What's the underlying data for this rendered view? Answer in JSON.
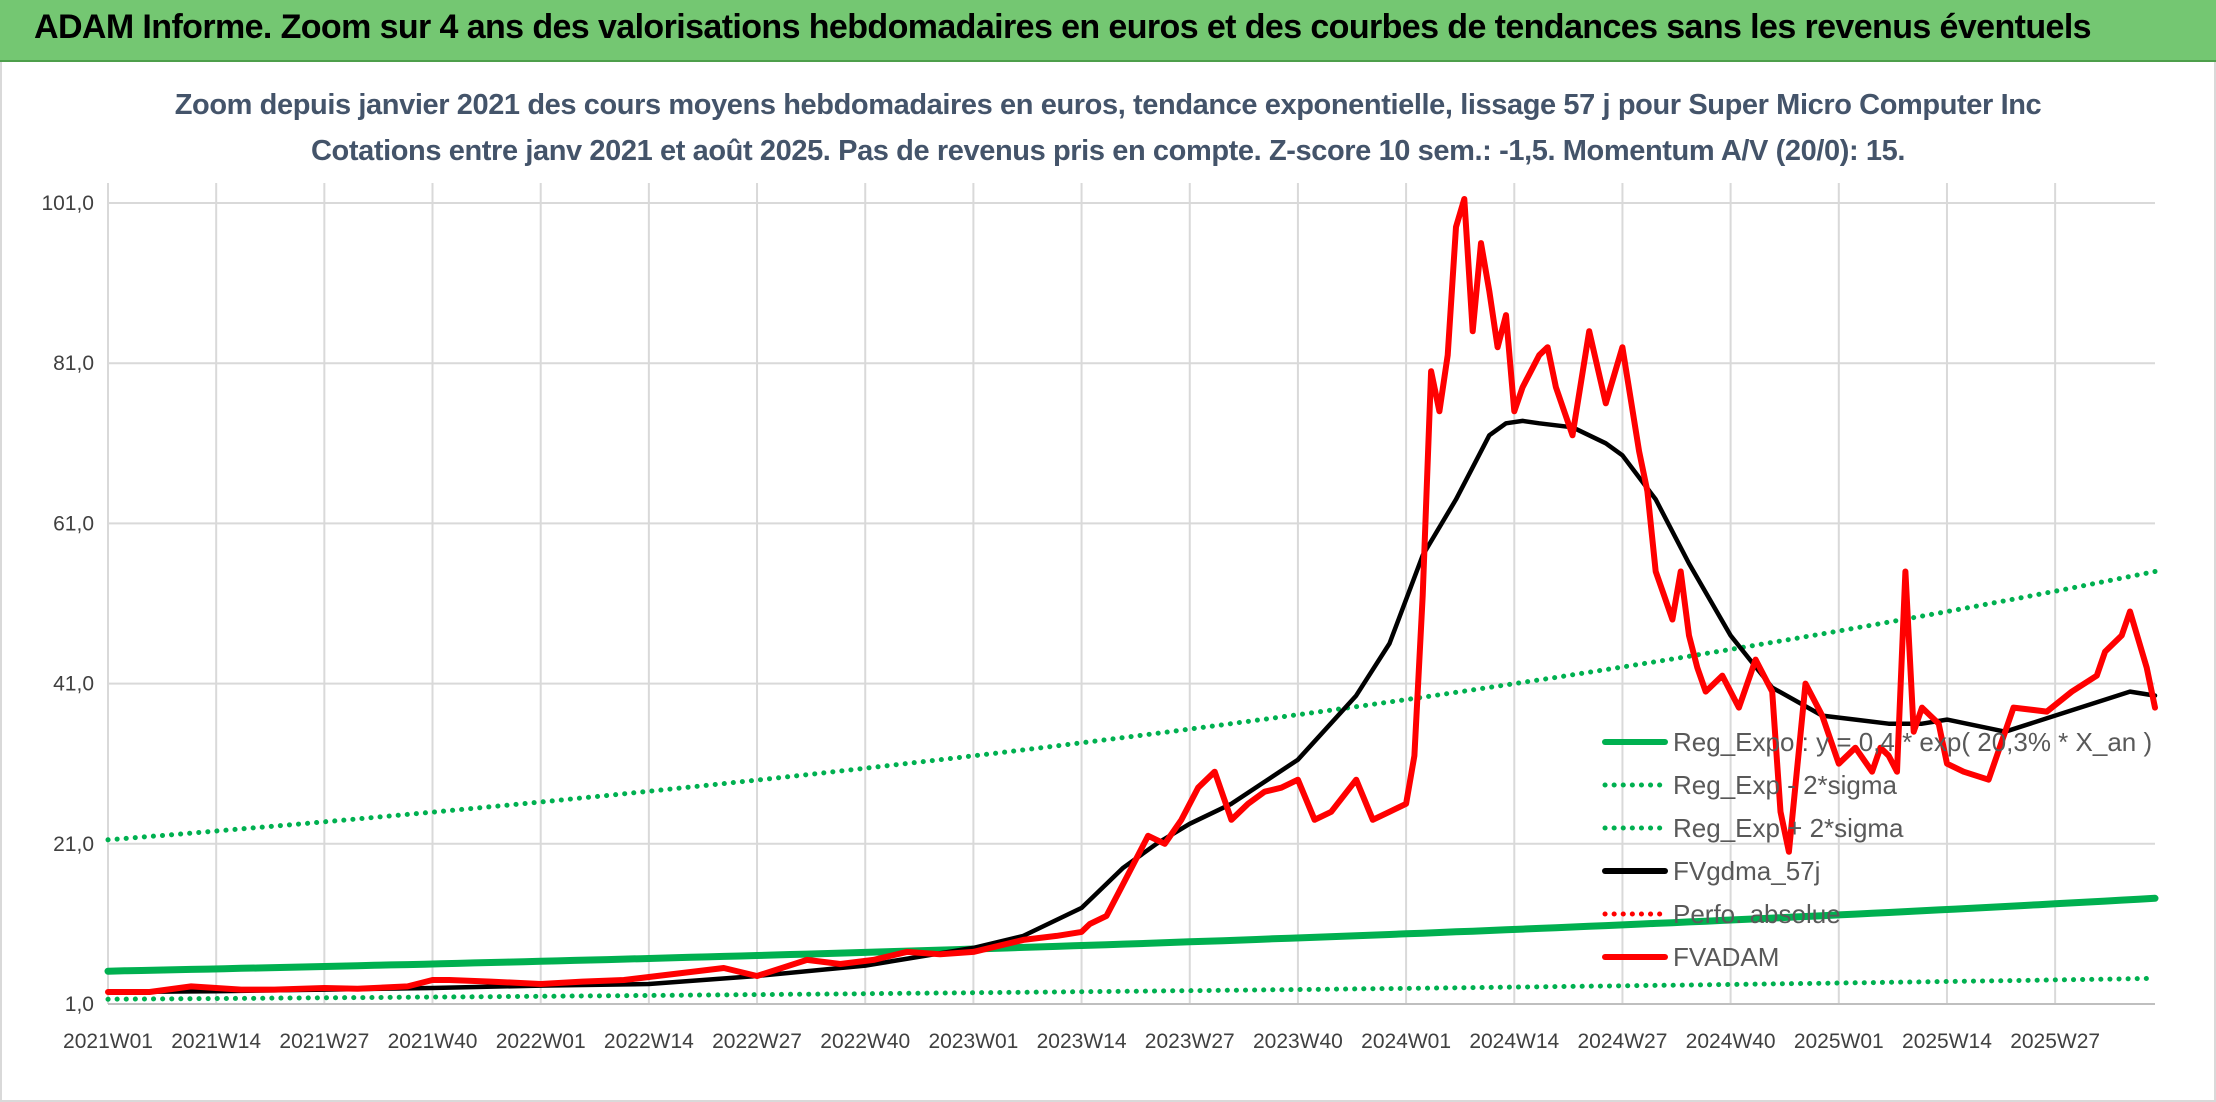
{
  "header": {
    "title": "ADAM Informe. Zoom sur 4 ans des valorisations hebdomadaires en euros et des courbes de tendances sans les revenus éventuels"
  },
  "chart_data": {
    "type": "line",
    "title": "Zoom depuis janvier 2021 des cours moyens hebdomadaires en euros, tendance exponentielle, lissage 57 j pour Super Micro Computer Inc",
    "subtitle": "Cotations entre janv 2021 et août 2025. Pas de revenus pris en compte. Z-score 10 sem.: -1,5. Momentum A/V (20/0): 15.",
    "xlabel": "",
    "ylabel": "",
    "ylim": [
      1,
      101
    ],
    "yticks": [
      "1,0",
      "21,0",
      "41,0",
      "61,0",
      "81,0",
      "101,0"
    ],
    "xticks": [
      "2021W01",
      "2021W14",
      "2021W27",
      "2021W40",
      "2022W01",
      "2022W14",
      "2022W27",
      "2022W40",
      "2023W01",
      "2023W14",
      "2023W27",
      "2023W40",
      "2024W01",
      "2024W14",
      "2024W27",
      "2024W40",
      "2025W01",
      "2025W14",
      "2025W27"
    ],
    "x_week_index": [
      0,
      13,
      26,
      39,
      52,
      65,
      78,
      91,
      104,
      117,
      130,
      143,
      156,
      169,
      182,
      195,
      208,
      221,
      234
    ],
    "grid": true,
    "legend_position": "bottom-right",
    "series": [
      {
        "name": "Reg_Expo : y = 0,4 * exp( 20,3% * X_an )",
        "color": "#00b050",
        "style": "solid",
        "x": [
          0,
          246
        ],
        "values": [
          5.1,
          14.2
        ],
        "shape": "exponential"
      },
      {
        "name": "Reg_Exp - 2*sigma",
        "color": "#00b050",
        "style": "dotted",
        "x": [
          0,
          246
        ],
        "values": [
          1.6,
          4.2
        ],
        "shape": "exponential"
      },
      {
        "name": "Reg_Exp + 2*sigma",
        "color": "#00b050",
        "style": "dotted",
        "x": [
          0,
          246
        ],
        "values": [
          21.5,
          55.0
        ],
        "shape": "exponential"
      },
      {
        "name": "FVgdma_57j",
        "color": "#000000",
        "style": "solid",
        "x": [
          0,
          13,
          26,
          39,
          52,
          65,
          78,
          91,
          104,
          110,
          117,
          122,
          126,
          130,
          135,
          143,
          150,
          154,
          158,
          162,
          164,
          166,
          168,
          170,
          172,
          176,
          180,
          182,
          186,
          190,
          195,
          200,
          206,
          210,
          214,
          218,
          221,
          228,
          234,
          240,
          243,
          246
        ],
        "values": [
          2.5,
          2.6,
          2.8,
          3.0,
          3.3,
          3.5,
          4.5,
          5.8,
          8.0,
          9.5,
          13.0,
          18.0,
          21.0,
          23.5,
          26.0,
          31.5,
          39.5,
          46.0,
          57.0,
          64.0,
          68.0,
          72.0,
          73.5,
          73.8,
          73.5,
          73.0,
          71.0,
          69.5,
          64.0,
          56.0,
          47.0,
          40.5,
          37.0,
          36.5,
          36.0,
          36.0,
          36.5,
          35.0,
          37.0,
          39.0,
          40.0,
          39.5
        ]
      },
      {
        "name": "Perfo. absolue",
        "color": "#ff0000",
        "style": "dotted",
        "x": [],
        "values": []
      },
      {
        "name": "FVADAM",
        "color": "#ff0000",
        "style": "solid",
        "x": [
          0,
          5,
          10,
          16,
          20,
          26,
          30,
          36,
          39,
          41,
          46,
          52,
          57,
          62,
          66,
          70,
          74,
          78,
          84,
          88,
          92,
          96,
          100,
          104,
          106,
          110,
          114,
          117,
          118,
          120,
          122,
          125,
          127,
          129,
          131,
          133,
          135,
          137,
          139,
          141,
          143,
          145,
          147,
          150,
          152,
          154,
          156,
          157,
          158,
          159,
          160,
          161,
          162,
          163,
          164,
          165,
          166,
          167,
          168,
          169,
          170,
          171,
          172,
          173,
          174,
          176,
          178,
          180,
          182,
          184,
          185,
          186,
          187,
          188,
          189,
          190,
          191,
          192,
          194,
          196,
          198,
          200,
          201,
          202,
          204,
          206,
          208,
          209,
          210,
          212,
          213,
          214,
          215,
          216,
          217,
          218,
          219,
          220,
          221,
          223,
          226,
          227,
          229,
          233,
          236,
          239,
          240,
          242,
          243,
          245,
          246
        ],
        "values": [
          2.5,
          2.5,
          3.2,
          2.8,
          2.8,
          3.0,
          2.9,
          3.2,
          4.0,
          4.0,
          3.8,
          3.5,
          3.8,
          4.0,
          4.5,
          5.0,
          5.5,
          4.5,
          6.5,
          6.0,
          6.5,
          7.5,
          7.2,
          7.5,
          8.0,
          9.0,
          9.5,
          10.0,
          11.0,
          12.0,
          16.0,
          22.0,
          21.0,
          24.0,
          28.0,
          30.0,
          24.0,
          26.0,
          27.5,
          28.0,
          29.0,
          24.0,
          25.0,
          29.0,
          24.0,
          25.0,
          26.0,
          32.0,
          52.0,
          80.0,
          75.0,
          82.0,
          98.0,
          101.5,
          85.0,
          96.0,
          90.0,
          83.0,
          87.0,
          75.0,
          78.0,
          80.0,
          82.0,
          83.0,
          78.0,
          72.0,
          85.0,
          76.0,
          83.0,
          70.0,
          65.0,
          55.0,
          52.0,
          49.0,
          55.0,
          47.0,
          43.0,
          40.0,
          42.0,
          38.0,
          44.0,
          40.0,
          25.0,
          20.0,
          41.0,
          37.0,
          31.0,
          32.0,
          33.0,
          30.0,
          33.0,
          32.0,
          30.0,
          55.0,
          35.0,
          38.0,
          37.0,
          36.0,
          31.0,
          30.0,
          29.0,
          32.0,
          38.0,
          37.5,
          40.0,
          42.0,
          45.0,
          47.0,
          50.0,
          43.0,
          38.0
        ]
      }
    ]
  }
}
